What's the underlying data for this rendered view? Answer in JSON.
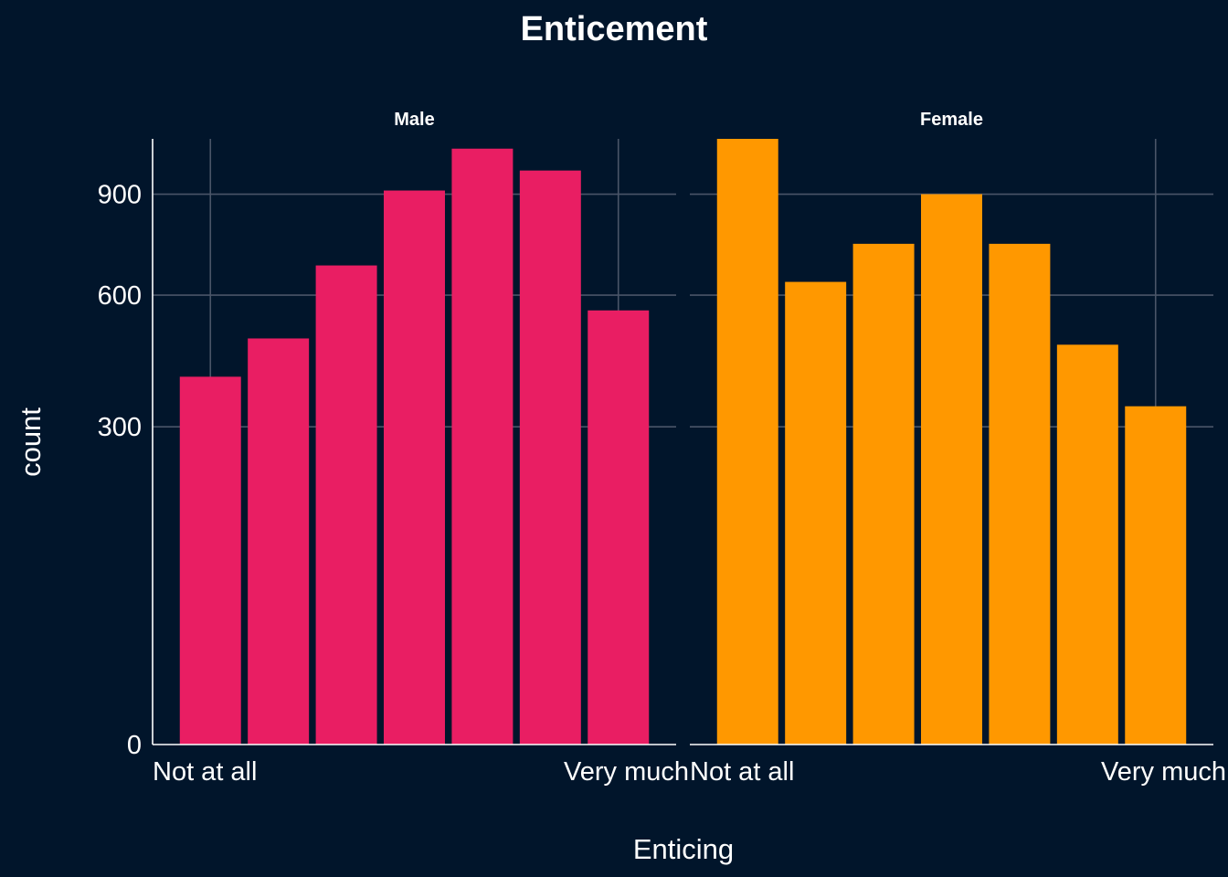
{
  "chart_data": {
    "type": "bar",
    "title": "Enticement",
    "xlabel": "Enticing",
    "ylabel": "count",
    "x_tick_labels": [
      "Not at all",
      "Very much"
    ],
    "y_ticks": [
      0,
      300,
      600,
      900
    ],
    "ylim": [
      0,
      1090
    ],
    "grid": true,
    "legend": "none",
    "categories": [
      1,
      2,
      3,
      4,
      5,
      6,
      7
    ],
    "panels": [
      {
        "name": "Male",
        "color": "#e91e63",
        "values": [
          402,
          490,
          682,
          912,
          1055,
          979,
          560
        ]
      },
      {
        "name": "Female",
        "color": "#ff9800",
        "values": [
          1090,
          636,
          745,
          900,
          745,
          475,
          340
        ]
      }
    ]
  }
}
